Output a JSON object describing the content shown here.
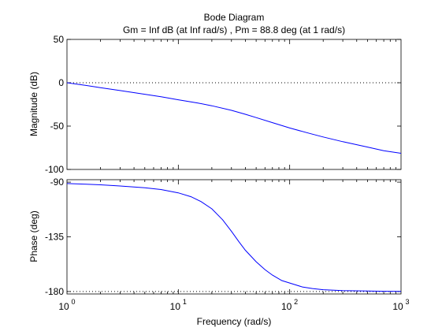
{
  "chart_data": [
    {
      "type": "line",
      "title": "Bode Diagram",
      "subtitle": "Gm = Inf dB (at Inf rad/s) ,  Pm = 88.8 deg (at 1 rad/s)",
      "xlabel": "Frequency  (rad/s)",
      "ylabel": "Magnitude (dB)",
      "xscale": "log",
      "xlim": [
        1,
        1000
      ],
      "ylim": [
        -100,
        50
      ],
      "yticks": [
        -100,
        -50,
        0,
        50
      ],
      "ytick_labels": [
        "-100",
        "-50",
        "0",
        "50"
      ],
      "reference_line": {
        "y": 0,
        "style": "dotted"
      },
      "line_color": "#0000ff",
      "series": [
        {
          "x": [
            1,
            1.5,
            2,
            3,
            5,
            7,
            10,
            15,
            20,
            30,
            40,
            50,
            70,
            100,
            150,
            200,
            300,
            500,
            700,
            1000
          ],
          "y": [
            0,
            -3.2,
            -5.6,
            -9.0,
            -13.3,
            -16.2,
            -19.6,
            -23.4,
            -26.5,
            -31.8,
            -36.4,
            -40.2,
            -46.0,
            -52.2,
            -58.4,
            -62.5,
            -68.0,
            -74.2,
            -78.4,
            -81.4
          ]
        }
      ]
    },
    {
      "type": "line",
      "xlabel": "Frequency  (rad/s)",
      "ylabel": "Phase (deg)",
      "xscale": "log",
      "xlim": [
        1,
        1000
      ],
      "ylim": [
        -182,
        -88
      ],
      "yticks": [
        -180,
        -135,
        -90
      ],
      "ytick_labels": [
        "-180",
        "-135",
        "-90"
      ],
      "xticks": [
        1,
        10,
        100,
        1000
      ],
      "xtick_labels": [
        {
          "base": "10",
          "exp": "0"
        },
        {
          "base": "10",
          "exp": "1"
        },
        {
          "base": "10",
          "exp": "2"
        },
        {
          "base": "10",
          "exp": "3"
        }
      ],
      "reference_line": {
        "y": -180,
        "style": "dotted"
      },
      "line_color": "#0000ff",
      "series": [
        {
          "x": [
            1,
            1.5,
            2,
            3,
            5,
            7,
            10,
            13,
            16,
            20,
            25,
            30,
            35,
            40,
            50,
            60,
            70,
            85,
            100,
            130,
            160,
            200,
            300,
            500,
            700,
            1000
          ],
          "y": [
            -91.2,
            -91.7,
            -92.2,
            -93.2,
            -94.6,
            -96.1,
            -98.8,
            -102,
            -106,
            -112,
            -121,
            -130.5,
            -139,
            -146,
            -155.5,
            -162,
            -166.5,
            -171,
            -173,
            -176.2,
            -177.5,
            -178.5,
            -179.3,
            -179.6,
            -179.8,
            -179.9
          ]
        }
      ]
    }
  ]
}
